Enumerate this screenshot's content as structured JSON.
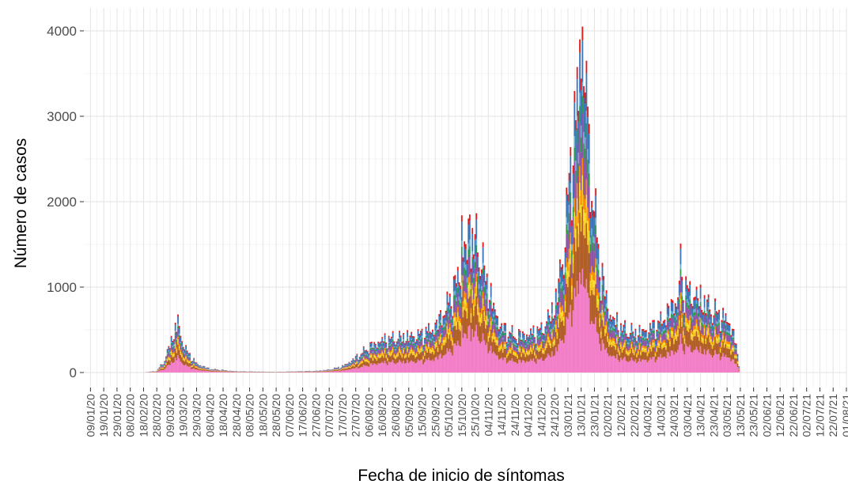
{
  "chart_data": {
    "type": "area",
    "stacked": true,
    "title": "",
    "xlabel": "Fecha de inicio de síntomas",
    "ylabel": "Número de casos",
    "ylim": [
      0,
      4200
    ],
    "yticks": [
      0,
      1000,
      2000,
      3000,
      4000
    ],
    "ytick_labels": [
      "0",
      "1000",
      "2000",
      "3000",
      "4000"
    ],
    "xlim": [
      "2020-01-04",
      "2021-08-01"
    ],
    "grid": true,
    "legend": "none",
    "x_tick_labels": [
      "09/01/20",
      "19/01/20",
      "29/01/20",
      "08/02/20",
      "18/02/20",
      "28/02/20",
      "09/03/20",
      "19/03/20",
      "29/03/20",
      "08/04/20",
      "18/04/20",
      "28/04/20",
      "08/05/20",
      "18/05/20",
      "28/05/20",
      "07/06/20",
      "17/06/20",
      "27/06/20",
      "07/07/20",
      "17/07/20",
      "27/07/20",
      "06/08/20",
      "16/08/20",
      "26/08/20",
      "05/09/20",
      "15/09/20",
      "25/09/20",
      "05/10/20",
      "15/10/20",
      "25/10/20",
      "04/11/20",
      "14/11/20",
      "24/11/20",
      "04/12/20",
      "14/12/20",
      "24/12/20",
      "03/01/21",
      "13/01/21",
      "23/01/21",
      "02/02/21",
      "12/02/21",
      "22/02/21",
      "04/03/21",
      "14/03/21",
      "24/03/21",
      "03/04/21",
      "13/04/21",
      "23/04/21",
      "03/05/21",
      "13/05/21",
      "23/05/21",
      "02/06/21",
      "12/06/21",
      "22/06/21",
      "02/07/21",
      "12/07/21",
      "22/07/21",
      "01/08/21"
    ],
    "x_tick_dates": [
      "2020-01-09",
      "2020-01-19",
      "2020-01-29",
      "2020-02-08",
      "2020-02-18",
      "2020-02-28",
      "2020-03-09",
      "2020-03-19",
      "2020-03-29",
      "2020-04-08",
      "2020-04-18",
      "2020-04-28",
      "2020-05-08",
      "2020-05-18",
      "2020-05-28",
      "2020-06-07",
      "2020-06-17",
      "2020-06-27",
      "2020-07-07",
      "2020-07-17",
      "2020-07-27",
      "2020-08-06",
      "2020-08-16",
      "2020-08-26",
      "2020-09-05",
      "2020-09-15",
      "2020-09-25",
      "2020-10-05",
      "2020-10-15",
      "2020-10-25",
      "2020-11-04",
      "2020-11-14",
      "2020-11-24",
      "2020-12-04",
      "2020-12-14",
      "2020-12-24",
      "2021-01-03",
      "2021-01-13",
      "2021-01-23",
      "2021-02-02",
      "2021-02-12",
      "2021-02-22",
      "2021-03-04",
      "2021-03-14",
      "2021-03-24",
      "2021-04-03",
      "2021-04-13",
      "2021-04-23",
      "2021-05-03",
      "2021-05-13",
      "2021-05-23",
      "2021-06-02",
      "2021-06-12",
      "2021-06-22",
      "2021-07-02",
      "2021-07-12",
      "2021-07-22",
      "2021-08-01"
    ],
    "total_points": [
      {
        "x": "2020-02-18",
        "y": 0
      },
      {
        "x": "2020-02-28",
        "y": 20
      },
      {
        "x": "2020-03-05",
        "y": 150
      },
      {
        "x": "2020-03-10",
        "y": 400
      },
      {
        "x": "2020-03-14",
        "y": 560
      },
      {
        "x": "2020-03-17",
        "y": 450
      },
      {
        "x": "2020-03-22",
        "y": 250
      },
      {
        "x": "2020-03-29",
        "y": 110
      },
      {
        "x": "2020-04-08",
        "y": 45
      },
      {
        "x": "2020-04-28",
        "y": 15
      },
      {
        "x": "2020-05-28",
        "y": 8
      },
      {
        "x": "2020-06-27",
        "y": 20
      },
      {
        "x": "2020-07-07",
        "y": 35
      },
      {
        "x": "2020-07-17",
        "y": 75
      },
      {
        "x": "2020-07-27",
        "y": 180
      },
      {
        "x": "2020-08-06",
        "y": 310
      },
      {
        "x": "2020-08-16",
        "y": 400
      },
      {
        "x": "2020-08-26",
        "y": 420
      },
      {
        "x": "2020-09-05",
        "y": 440
      },
      {
        "x": "2020-09-15",
        "y": 470
      },
      {
        "x": "2020-09-25",
        "y": 560
      },
      {
        "x": "2020-10-05",
        "y": 850
      },
      {
        "x": "2020-10-12",
        "y": 1150
      },
      {
        "x": "2020-10-17",
        "y": 1500
      },
      {
        "x": "2020-10-21",
        "y": 1600
      },
      {
        "x": "2020-10-26",
        "y": 1600
      },
      {
        "x": "2020-10-31",
        "y": 1300
      },
      {
        "x": "2020-11-07",
        "y": 850
      },
      {
        "x": "2020-11-14",
        "y": 550
      },
      {
        "x": "2020-11-24",
        "y": 450
      },
      {
        "x": "2020-12-04",
        "y": 470
      },
      {
        "x": "2020-12-14",
        "y": 520
      },
      {
        "x": "2020-12-24",
        "y": 800
      },
      {
        "x": "2020-12-31",
        "y": 1500
      },
      {
        "x": "2021-01-05",
        "y": 2500
      },
      {
        "x": "2021-01-10",
        "y": 3300
      },
      {
        "x": "2021-01-13",
        "y": 3600
      },
      {
        "x": "2021-01-16",
        "y": 3200
      },
      {
        "x": "2021-01-21",
        "y": 2300
      },
      {
        "x": "2021-01-28",
        "y": 1200
      },
      {
        "x": "2021-02-04",
        "y": 700
      },
      {
        "x": "2021-02-12",
        "y": 550
      },
      {
        "x": "2021-02-22",
        "y": 480
      },
      {
        "x": "2021-03-04",
        "y": 520
      },
      {
        "x": "2021-03-14",
        "y": 620
      },
      {
        "x": "2021-03-24",
        "y": 850
      },
      {
        "x": "2021-03-31",
        "y": 1050
      },
      {
        "x": "2021-04-03",
        "y": 1000
      },
      {
        "x": "2021-04-13",
        "y": 900
      },
      {
        "x": "2021-04-23",
        "y": 750
      },
      {
        "x": "2021-05-03",
        "y": 650
      },
      {
        "x": "2021-05-08",
        "y": 500
      },
      {
        "x": "2021-05-13",
        "y": 0
      }
    ],
    "spikes": [
      {
        "x": "2020-03-15",
        "y": 680
      },
      {
        "x": "2020-10-15",
        "y": 1840
      },
      {
        "x": "2020-10-21",
        "y": 1850
      },
      {
        "x": "2021-01-12",
        "y": 3900
      },
      {
        "x": "2021-01-14",
        "y": 4050
      },
      {
        "x": "2021-01-17",
        "y": 3650
      },
      {
        "x": "2021-03-29",
        "y": 1510
      }
    ],
    "layer_shares": [
      {
        "share": 0.3,
        "color": "#f27ec8"
      },
      {
        "share": 0.18,
        "color": "#b15f26"
      },
      {
        "share": 0.05,
        "color": "#f2c324"
      },
      {
        "share": 0.04,
        "color": "#f5e02a"
      },
      {
        "share": 0.05,
        "color": "#ff8a00"
      },
      {
        "share": 0.13,
        "color": "#8e55a6"
      },
      {
        "share": 0.05,
        "color": "#2e9c53"
      },
      {
        "share": 0.04,
        "color": "#6baed6"
      },
      {
        "share": 0.12,
        "color": "#3c76b8"
      },
      {
        "share": 0.04,
        "color": "#e31a1c"
      }
    ]
  }
}
